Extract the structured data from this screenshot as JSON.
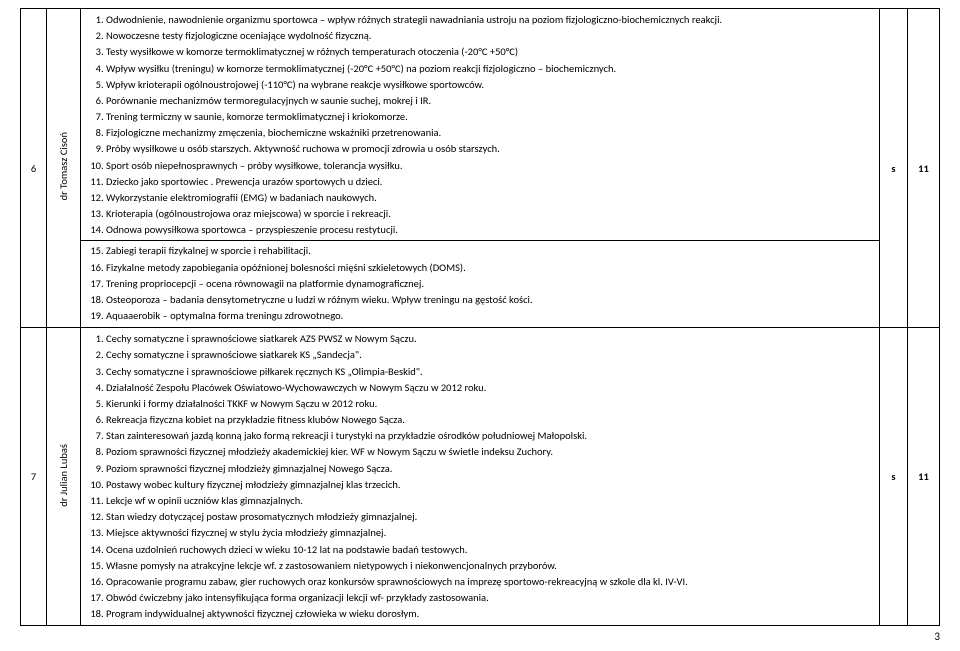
{
  "rows": [
    {
      "num": "6",
      "name": "dr Tomasz Cisoń",
      "s": "s",
      "count": "11",
      "groups": [
        {
          "items": [
            "Odwodnienie, nawodnienie organizmu sportowca – wpływ różnych strategii nawadniania ustroju na poziom fizjologiczno-biochemicznych reakcji.",
            "Nowoczesne testy fizjologiczne oceniające wydolność fizyczną.",
            "Testy wysiłkowe w komorze termoklimatycznej w różnych temperaturach otoczenia (-20°C +50°C)",
            "Wpływ wysiłku (treningu) w komorze termoklimatycznej (-20°C +50°C) na poziom reakcji fizjologiczno – biochemicznych.",
            "Wpływ krioterapii ogólnoustrojowej (-110°C) na wybrane reakcje wysiłkowe sportowców.",
            "Porównanie mechanizmów termoregulacyjnych w saunie suchej, mokrej i IR.",
            "Trening termiczny w saunie, komorze termoklimatycznej i kriokomorze.",
            "Fizjologiczne mechanizmy zmęczenia, biochemiczne wskaźniki przetrenowania.",
            "Próby wysiłkowe u osób starszych. Aktywność ruchowa w promocji zdrowia u osób starszych.",
            "Sport osób niepełnosprawnych – próby wysiłkowe, tolerancja wysiłku.",
            "Dziecko jako sportowiec . Prewencja urazów sportowych u dzieci.",
            "Wykorzystanie elektromiografii (EMG) w badaniach naukowych.",
            "Krioterapia (ogólnoustrojowa oraz miejscowa) w sporcie i rekreacji.",
            "Odnowa powysiłkowa sportowca – przyspieszenie procesu restytucji."
          ]
        },
        {
          "start": 15,
          "items": [
            "Zabiegi terapii fizykalnej w sporcie i rehabilitacji.",
            "Fizykalne metody zapobiegania opóźnionej bolesności mięśni szkieletowych (DOMS).",
            "Trening propriocepcji – ocena równowagii na platformie dynamograficznej.",
            "Osteoporoza – badania densytometryczne u ludzi w różnym wieku. Wpływ treningu na gęstość kości.",
            "Aquaaerobik – optymalna forma treningu zdrowotnego."
          ]
        }
      ]
    },
    {
      "num": "7",
      "name": "dr Julian Lubaś",
      "s": "s",
      "count": "11",
      "groups": [
        {
          "items": [
            "Cechy somatyczne i sprawnościowe siatkarek AZS PWSZ w Nowym Sączu.",
            "Cechy somatyczne i sprawnościowe siatkarek KS „Sandecja\".",
            "Cechy somatyczne i sprawnościowe piłkarek ręcznych KS „Olimpia-Beskid\".",
            "Działalność Zespołu Placówek Oświatowo-Wychowawczych w Nowym Sączu  w 2012 roku.",
            "Kierunki i formy działalności TKKF w Nowym Sączu w 2012 roku.",
            "Rekreacja fizyczna kobiet na przykładzie  fitness klubów Nowego Sącza.",
            "Stan zainteresowań jazdą konną jako formą rekreacji i turystyki na przykładzie ośrodków południowej Małopolski.",
            "Poziom sprawności fizycznej młodzieży akademickiej kier.  WF w Nowym Sączu  w świetle indeksu  Zuchory.",
            "Poziom sprawności fizycznej młodzieży gimnazjalnej Nowego Sącza.",
            "Postawy wobec kultury fizycznej młodzieży gimnazjalnej klas trzecich.",
            "Lekcje wf w opinii uczniów klas gimnazjalnych.",
            "Stan wiedzy dotyczącej postaw prosomatycznych młodzieży gimnazjalnej.",
            "Miejsce aktywności fizycznej w stylu życia młodzieży gimnazjalnej.",
            "Ocena uzdolnień ruchowych dzieci w wieku 10-12 lat na podstawie badań testowych.",
            "Własne pomysły na atrakcyjne lekcje wf.  z zastosowaniem nietypowych  i niekonwencjonalnych przyborów.",
            "Opracowanie programu zabaw, gier ruchowych oraz konkursów sprawnościowych na imprezę sportowo-rekreacyjną w szkole dla kl. IV-VI.",
            "Obwód ćwiczebny jako intensyfikująca forma organizacji lekcji wf- przykłady zastosowania.",
            "Program indywidualnej aktywności fizycznej człowieka w wieku dorosłym."
          ]
        }
      ]
    }
  ],
  "page": "3"
}
